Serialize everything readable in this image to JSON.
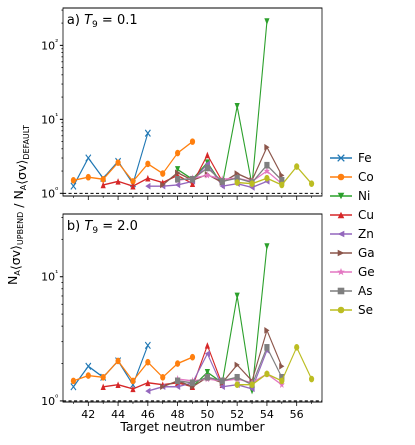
{
  "chart_data": [
    {
      "type": "line",
      "panel_label": "a) T9 = 0.1",
      "yscale": "log",
      "ylim": [
        0.92,
        320
      ],
      "xlim": [
        40.3,
        57.7
      ],
      "xlabel": "Target neutron number",
      "ylabel": "N_A⟨σv⟩_UPBEND / N_A⟨σv⟩_DEFAULT",
      "xticks": [
        42,
        44,
        46,
        48,
        50,
        52,
        54,
        56
      ],
      "yticks": [
        1,
        10,
        100
      ],
      "ytick_labels": [
        "10⁰",
        "10¹",
        "10²"
      ],
      "reference_line": 1,
      "series": [
        {
          "name": "Fe",
          "color": "#1f77b4",
          "marker": "x",
          "x": [
            41,
            42,
            43,
            44,
            45,
            46
          ],
          "y": [
            1.25,
            3.0,
            1.6,
            2.7,
            1.35,
            6.5
          ]
        },
        {
          "name": "Co",
          "color": "#ff7f0e",
          "marker": "circle",
          "x": [
            41,
            42,
            43,
            44,
            45,
            46,
            47,
            48,
            49
          ],
          "y": [
            1.5,
            1.65,
            1.55,
            2.6,
            1.45,
            2.5,
            1.85,
            3.5,
            5.0
          ]
        },
        {
          "name": "Ni",
          "color": "#2ca02c",
          "marker": "triangle-down",
          "x": [
            48,
            49,
            50,
            51,
            52,
            53,
            54
          ],
          "y": [
            2.1,
            1.55,
            2.6,
            1.3,
            15.0,
            1.3,
            210.0
          ]
        },
        {
          "name": "Cu",
          "color": "#d62728",
          "marker": "triangle-up",
          "x": [
            43,
            44,
            45,
            46,
            47,
            48,
            49,
            50,
            51
          ],
          "y": [
            1.3,
            1.45,
            1.25,
            1.6,
            1.4,
            1.75,
            1.35,
            3.3,
            1.45
          ]
        },
        {
          "name": "Zn",
          "color": "#9467bd",
          "marker": "triangle-left",
          "x": [
            46,
            47,
            48,
            49,
            50,
            51,
            52,
            53,
            54
          ],
          "y": [
            1.25,
            1.25,
            1.3,
            1.45,
            2.5,
            1.25,
            1.35,
            1.2,
            1.45
          ]
        },
        {
          "name": "Ga",
          "color": "#8c564b",
          "marker": "triangle-right",
          "x": [
            47,
            48,
            49,
            50,
            51,
            52,
            53,
            54,
            55
          ],
          "y": [
            1.3,
            1.9,
            1.5,
            1.8,
            1.4,
            1.85,
            1.5,
            4.2,
            1.75
          ]
        },
        {
          "name": "Ge",
          "color": "#e377c2",
          "marker": "star",
          "x": [
            48,
            49,
            50,
            51,
            52,
            53,
            54,
            55
          ],
          "y": [
            1.5,
            1.6,
            1.75,
            1.55,
            1.6,
            1.45,
            2.0,
            1.35
          ]
        },
        {
          "name": "As",
          "color": "#7f7f7f",
          "marker": "square",
          "x": [
            48,
            49,
            50,
            51,
            52,
            53,
            54,
            55
          ],
          "y": [
            1.55,
            1.55,
            2.2,
            1.45,
            1.6,
            1.4,
            2.4,
            1.5
          ]
        },
        {
          "name": "Se",
          "color": "#bcbd22",
          "marker": "circle",
          "x": [
            52,
            53,
            54,
            55,
            56,
            57
          ],
          "y": [
            1.4,
            1.35,
            1.6,
            1.3,
            2.3,
            1.35
          ]
        }
      ]
    },
    {
      "type": "line",
      "panel_label": "b) T9 = 2.0",
      "yscale": "log",
      "ylim": [
        0.98,
        32
      ],
      "xlim": [
        40.3,
        57.7
      ],
      "xlabel": "Target neutron number",
      "ylabel": "N_A⟨σv⟩_UPBEND / N_A⟨σv⟩_DEFAULT",
      "xticks": [
        42,
        44,
        46,
        48,
        50,
        52,
        54,
        56
      ],
      "yticks": [
        1,
        10
      ],
      "ytick_labels": [
        "10⁰",
        "10¹"
      ],
      "reference_line": 1,
      "series": [
        {
          "name": "Fe",
          "color": "#1f77b4",
          "marker": "x",
          "x": [
            41,
            42,
            43,
            44,
            45,
            46
          ],
          "y": [
            1.3,
            1.9,
            1.55,
            2.1,
            1.35,
            2.8
          ]
        },
        {
          "name": "Co",
          "color": "#ff7f0e",
          "marker": "circle",
          "x": [
            41,
            42,
            43,
            44,
            45,
            46,
            47,
            48,
            49
          ],
          "y": [
            1.45,
            1.6,
            1.55,
            2.1,
            1.45,
            2.05,
            1.55,
            2.0,
            2.25
          ]
        },
        {
          "name": "Ni",
          "color": "#2ca02c",
          "marker": "triangle-down",
          "x": [
            48,
            49,
            50,
            51,
            52,
            53,
            54
          ],
          "y": [
            1.45,
            1.3,
            1.7,
            1.4,
            7.0,
            1.2,
            17.5
          ]
        },
        {
          "name": "Cu",
          "color": "#d62728",
          "marker": "triangle-up",
          "x": [
            43,
            44,
            45,
            46,
            47,
            48,
            49,
            50,
            51
          ],
          "y": [
            1.3,
            1.35,
            1.25,
            1.4,
            1.35,
            1.4,
            1.3,
            2.8,
            1.35
          ]
        },
        {
          "name": "Zn",
          "color": "#9467bd",
          "marker": "triangle-left",
          "x": [
            46,
            47,
            48,
            49,
            50,
            51,
            52,
            53,
            54
          ],
          "y": [
            1.2,
            1.3,
            1.3,
            1.4,
            2.4,
            1.3,
            1.35,
            1.25,
            2.55
          ]
        },
        {
          "name": "Ga",
          "color": "#8c564b",
          "marker": "triangle-right",
          "x": [
            47,
            48,
            49,
            50,
            51,
            52,
            53,
            54,
            55
          ],
          "y": [
            1.3,
            1.45,
            1.3,
            1.55,
            1.4,
            1.95,
            1.45,
            3.7,
            1.9
          ]
        },
        {
          "name": "Ge",
          "color": "#e377c2",
          "marker": "star",
          "x": [
            48,
            49,
            50,
            51,
            52,
            53,
            54,
            55
          ],
          "y": [
            1.5,
            1.45,
            1.5,
            1.45,
            1.5,
            1.4,
            1.65,
            1.35
          ]
        },
        {
          "name": "As",
          "color": "#7f7f7f",
          "marker": "square",
          "x": [
            48,
            49,
            50,
            51,
            52,
            53,
            54,
            55
          ],
          "y": [
            1.45,
            1.4,
            1.55,
            1.45,
            1.55,
            1.35,
            2.7,
            1.55
          ]
        },
        {
          "name": "Se",
          "color": "#bcbd22",
          "marker": "circle",
          "x": [
            52,
            53,
            54,
            55,
            56,
            57
          ],
          "y": [
            1.35,
            1.35,
            1.65,
            1.45,
            2.7,
            1.5
          ]
        }
      ]
    }
  ]
}
